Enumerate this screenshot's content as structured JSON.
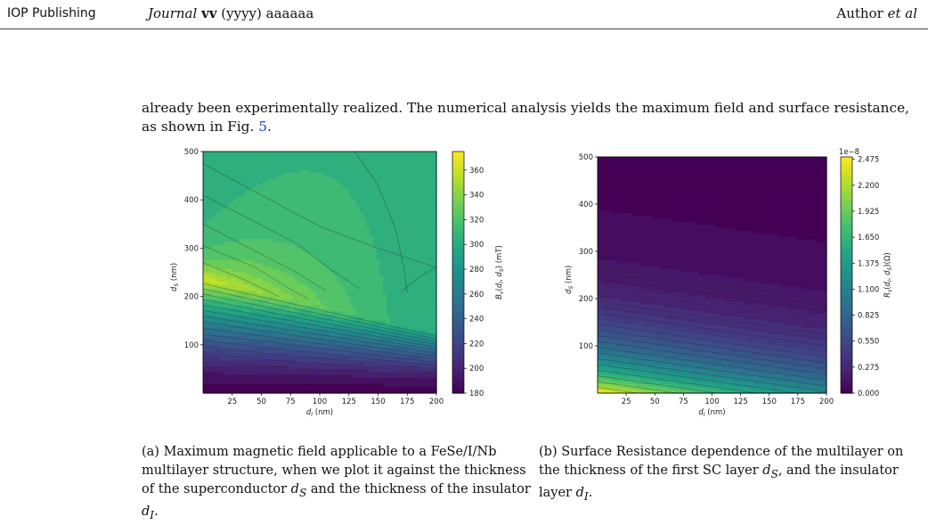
{
  "header": {
    "publisher": "IOP Publishing",
    "journal_name": "Journal",
    "journal_volume": "vv",
    "journal_rest": "(yyyy) aaaaaa",
    "author": "Author",
    "etal": "et al"
  },
  "body": {
    "text_before": "already been experimentally realized. The numerical analysis yields the maximum field and surface resistance, as shown in Fig.",
    "fig_ref": "5",
    "text_after": "."
  },
  "figure_a": {
    "caption_html": "(a) Maximum magnetic field applicable to a FeSe/I/Nb multilayer structure, when we plot it against the thickness of the superconductor <i>d<sub>S</sub></i> and the thickness of the insulator <i>d<sub>I</sub></i>."
  },
  "figure_b": {
    "caption_html": "(b) Surface Resistance dependence of the multilayer on the thickness of the first SC layer <i>d<sub>S</sub></i>, and the insulator layer <i>d<sub>I</sub></i>."
  },
  "chart_data": [
    {
      "type": "heatmap",
      "title": "",
      "xlabel": "d_I (nm)",
      "ylabel": "d_S (nm)",
      "colorbar_label": "B_v(d_I, d_S) (mT)",
      "xlim": [
        0,
        200
      ],
      "ylim": [
        0,
        500
      ],
      "xticks": [
        25,
        50,
        75,
        100,
        125,
        150,
        175,
        200
      ],
      "yticks": [
        100,
        200,
        300,
        400,
        500
      ],
      "colorbar_range": [
        180,
        375
      ],
      "colorbar_ticks": [
        180,
        200,
        220,
        240,
        260,
        280,
        300,
        320,
        340,
        360
      ],
      "colorbar_exponent": "",
      "colormap": "viridis"
    },
    {
      "type": "heatmap",
      "title": "",
      "xlabel": "d_I (nm)",
      "ylabel": "d_S (nm)",
      "colorbar_label": "R_s(d_I, d_S) (Ω)",
      "xlim": [
        0,
        200
      ],
      "ylim": [
        0,
        500
      ],
      "xticks": [
        25,
        50,
        75,
        100,
        125,
        150,
        175,
        200
      ],
      "yticks": [
        100,
        200,
        300,
        400,
        500
      ],
      "colorbar_range": [
        0,
        2.5
      ],
      "colorbar_ticks": [
        0.0,
        0.275,
        0.55,
        0.825,
        1.1,
        1.375,
        1.65,
        1.925,
        2.2,
        2.475
      ],
      "colorbar_exponent": "1e−8",
      "colormap": "viridis"
    }
  ]
}
